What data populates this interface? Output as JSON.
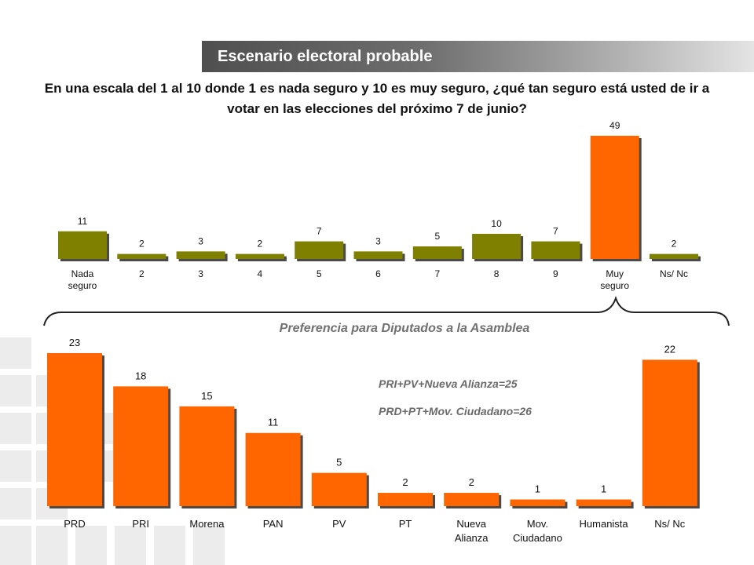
{
  "header": {
    "title": "Escenario electoral probable"
  },
  "question": "En una escala del 1 al 10 donde 1 es nada seguro y 10 es muy seguro, ¿qué tan seguro está usted de ir a votar en las elecciones del próximo 7 de junio?",
  "subtitle": "Preferencia para Diputados a  la Asamblea",
  "notes": [
    "PRI+PV+Nueva Alianza=25",
    "PRD+PT+Mov. Ciudadano=26"
  ],
  "colors": {
    "olive": "#808000",
    "orange": "#ff6600",
    "bar_shadow": "#4a4a4a"
  },
  "chart_data": [
    {
      "type": "bar",
      "categories": [
        [
          "Nada",
          "seguro"
        ],
        [
          "2"
        ],
        [
          "3"
        ],
        [
          "4"
        ],
        [
          "5"
        ],
        [
          "6"
        ],
        [
          "7"
        ],
        [
          "8"
        ],
        [
          "9"
        ],
        [
          "Muy",
          "seguro"
        ],
        [
          "Ns/ Nc"
        ]
      ],
      "values": [
        11,
        2,
        3,
        2,
        7,
        3,
        5,
        10,
        7,
        49,
        2
      ],
      "bar_colors": [
        "olive",
        "olive",
        "olive",
        "olive",
        "olive",
        "olive",
        "olive",
        "olive",
        "olive",
        "orange",
        "olive"
      ],
      "ylim": [
        0,
        49
      ]
    },
    {
      "type": "bar",
      "categories": [
        [
          "PRD"
        ],
        [
          "PRI"
        ],
        [
          "Morena"
        ],
        [
          "PAN"
        ],
        [
          "PV"
        ],
        [
          "PT"
        ],
        [
          "Nueva",
          "Alianza"
        ],
        [
          "Mov.",
          "Ciudadano"
        ],
        [
          "Humanista"
        ],
        [
          "Ns/ Nc"
        ]
      ],
      "values": [
        23,
        18,
        15,
        11,
        5,
        2,
        2,
        1,
        1,
        22
      ],
      "bar_colors": [
        "orange",
        "orange",
        "orange",
        "orange",
        "orange",
        "orange",
        "orange",
        "orange",
        "orange",
        "orange"
      ],
      "ylim": [
        0,
        23
      ]
    }
  ]
}
